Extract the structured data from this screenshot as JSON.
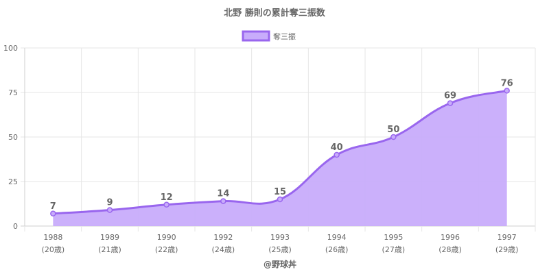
{
  "chart_data": {
    "type": "area",
    "title": "北野 勝則の累計奪三振数",
    "categories": [
      "1988",
      "1989",
      "1990",
      "1992",
      "1993",
      "1994",
      "1995",
      "1996",
      "1997"
    ],
    "category_sublabels": [
      "(20歳)",
      "(21歳)",
      "(22歳)",
      "(24歳)",
      "(25歳)",
      "(26歳)",
      "(27歳)",
      "(28歳)",
      "(29歳)"
    ],
    "series": [
      {
        "name": "奪三振",
        "values": [
          7,
          9,
          12,
          14,
          15,
          40,
          50,
          69,
          76
        ]
      }
    ],
    "ylim": [
      0,
      100
    ],
    "yticks": [
      0,
      25,
      50,
      75,
      100
    ],
    "grid": true,
    "legend_position": "top",
    "data_labels": true,
    "colors": {
      "line": "#9966ee",
      "fill": "#c8acfb",
      "text": "#666666",
      "grid": "#e6e6e6"
    },
    "credit": "@野球丼"
  }
}
